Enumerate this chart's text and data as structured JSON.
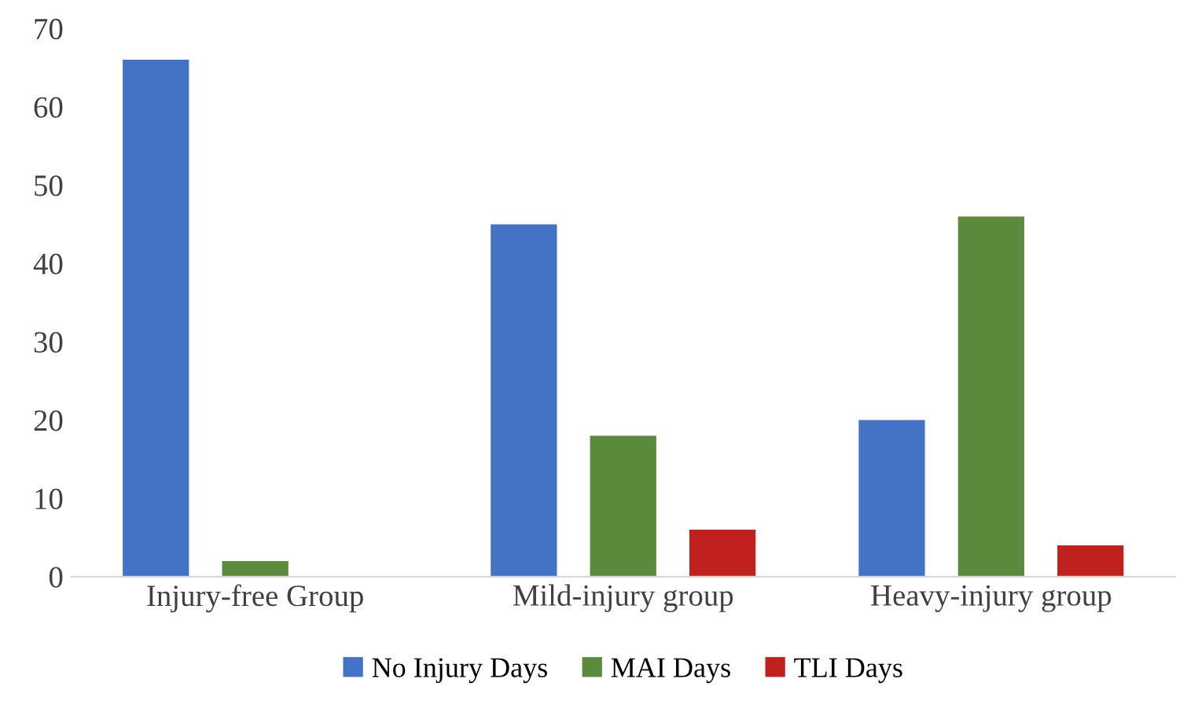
{
  "chart_data": {
    "type": "bar",
    "categories": [
      "Injury-free Group",
      "Mild-injury group",
      "Heavy-injury group"
    ],
    "series": [
      {
        "name": "No Injury Days",
        "color": "#4472c4",
        "values": [
          66,
          45,
          20
        ]
      },
      {
        "name": "MAI Days",
        "color": "#5b8a3c",
        "values": [
          2,
          18,
          46
        ]
      },
      {
        "name": "TLI Days",
        "color": "#c0201e",
        "values": [
          0,
          6,
          4
        ]
      }
    ],
    "ylim": [
      0,
      70
    ],
    "yticks": [
      0,
      10,
      20,
      30,
      40,
      50,
      60,
      70
    ],
    "grid": false,
    "legend": "bottom"
  }
}
